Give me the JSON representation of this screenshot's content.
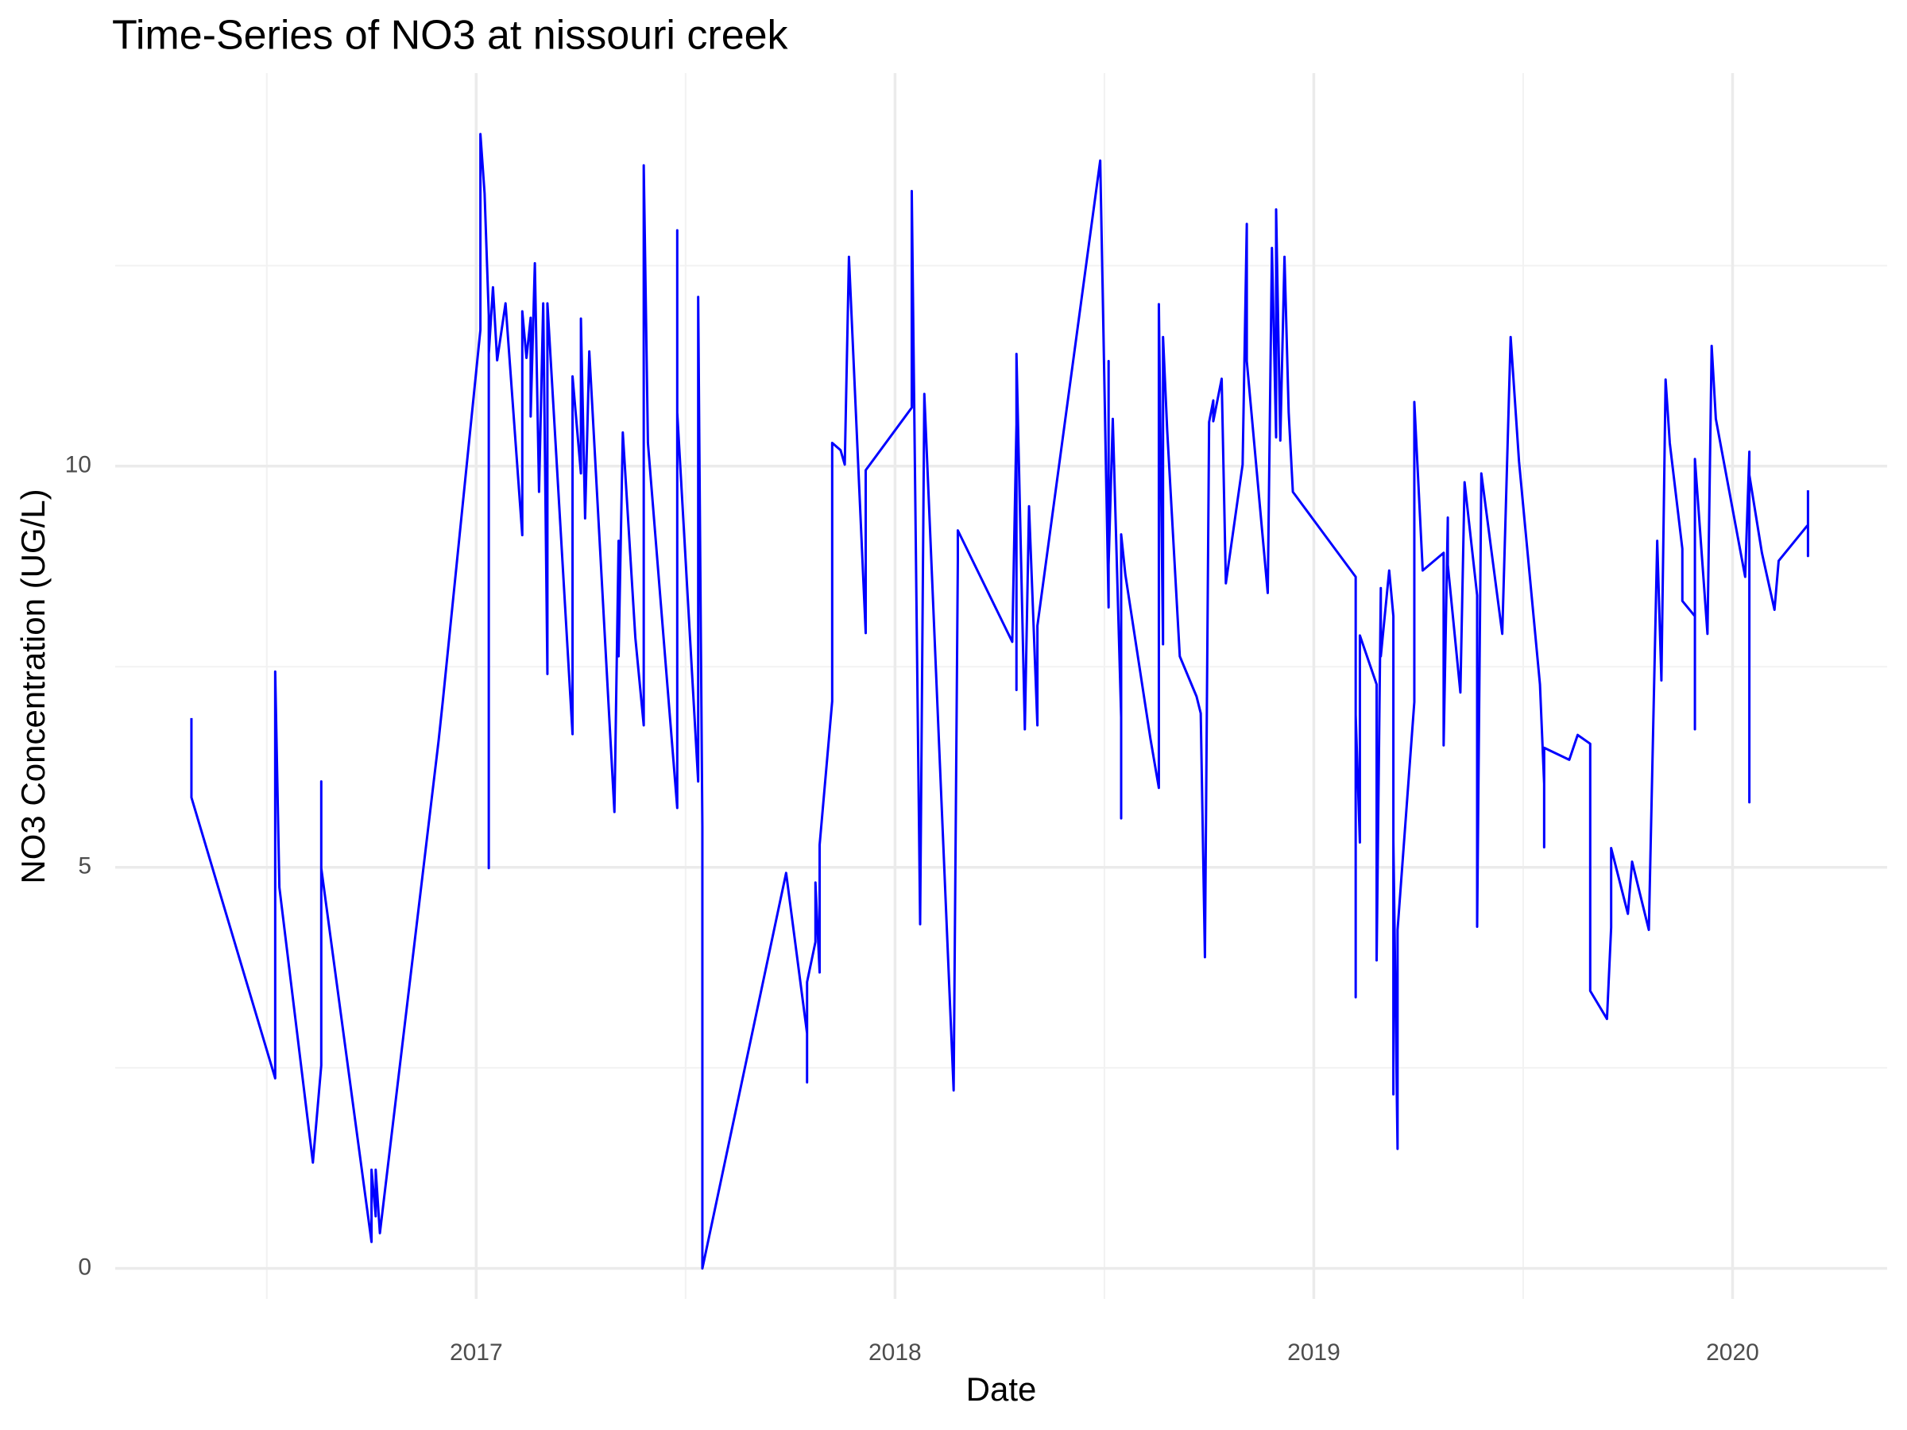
{
  "chart_data": {
    "type": "line",
    "title": "Time-Series of NO3 at nissouri creek",
    "x_label": "Date",
    "y_label": "NO3 Concentration (UG/L)",
    "color": "#0000ff",
    "grid": true,
    "xlim": [
      2016.138,
      2020.369
    ],
    "ylim": [
      -0.38,
      14.9
    ],
    "xticks": [
      2017,
      2018,
      2019,
      2020
    ],
    "x_minor_ticks": [
      2016.5,
      2017.5,
      2018.5,
      2019.5
    ],
    "yticks": [
      0,
      5,
      10
    ],
    "y_minor_ticks": [
      2.5,
      7.5,
      12.5
    ],
    "x": [
      2016.32,
      2016.32,
      2016.52,
      2016.52,
      2016.53,
      2016.61,
      2016.63,
      2016.63,
      2016.63,
      2016.75,
      2016.75,
      2016.76,
      2016.76,
      2016.77,
      2016.91,
      2016.92,
      2017.01,
      2017.01,
      2017.02,
      2017.03,
      2017.03,
      2017.03,
      2017.04,
      2017.05,
      2017.07,
      2017.11,
      2017.11,
      2017.12,
      2017.13,
      2017.13,
      2017.14,
      2017.15,
      2017.16,
      2017.17,
      2017.17,
      2017.23,
      2017.23,
      2017.25,
      2017.25,
      2017.26,
      2017.27,
      2017.33,
      2017.34,
      2017.34,
      2017.35,
      2017.38,
      2017.4,
      2017.4,
      2017.41,
      2017.48,
      2017.48,
      2017.48,
      2017.53,
      2017.53,
      2017.54,
      2017.54,
      2017.74,
      2017.79,
      2017.79,
      2017.79,
      2017.81,
      2017.81,
      2017.82,
      2017.82,
      2017.85,
      2017.85,
      2017.87,
      2017.88,
      2017.89,
      2017.93,
      2017.93,
      2018.04,
      2018.04,
      2018.06,
      2018.07,
      2018.14,
      2018.15,
      2018.15,
      2018.28,
      2018.29,
      2018.29,
      2018.29,
      2018.31,
      2018.32,
      2018.34,
      2018.34,
      2018.49,
      2018.51,
      2018.51,
      2018.51,
      2018.52,
      2018.54,
      2018.54,
      2018.54,
      2018.55,
      2018.61,
      2018.63,
      2018.63,
      2018.64,
      2018.64,
      2018.65,
      2018.68,
      2018.72,
      2018.73,
      2018.74,
      2018.75,
      2018.76,
      2018.76,
      2018.78,
      2018.79,
      2018.83,
      2018.84,
      2018.84,
      2018.89,
      2018.9,
      2018.91,
      2018.91,
      2018.92,
      2018.93,
      2018.94,
      2018.95,
      2019.1,
      2019.1,
      2019.1,
      2019.11,
      2019.11,
      2019.15,
      2019.15,
      2019.16,
      2019.16,
      2019.18,
      2019.19,
      2019.19,
      2019.19,
      2019.2,
      2019.2,
      2019.24,
      2019.24,
      2019.26,
      2019.31,
      2019.31,
      2019.32,
      2019.32,
      2019.35,
      2019.36,
      2019.39,
      2019.39,
      2019.4,
      2019.45,
      2019.47,
      2019.49,
      2019.54,
      2019.55,
      2019.55,
      2019.55,
      2019.61,
      2019.63,
      2019.66,
      2019.66,
      2019.7,
      2019.71,
      2019.71,
      2019.75,
      2019.76,
      2019.8,
      2019.82,
      2019.83,
      2019.84,
      2019.85,
      2019.88,
      2019.88,
      2019.91,
      2019.91,
      2019.91,
      2019.94,
      2019.95,
      2019.96,
      2020.03,
      2020.04,
      2020.04,
      2020.04,
      2020.07,
      2020.1,
      2020.11,
      2020.18,
      2020.18,
      2020.18
    ],
    "values": [
      6.86,
      5.87,
      2.37,
      7.44,
      4.75,
      1.32,
      2.53,
      6.07,
      4.99,
      0.33,
      1.23,
      0.65,
      1.23,
      0.44,
      6.57,
      7.06,
      11.7,
      14.14,
      13.4,
      11.88,
      4.99,
      11.4,
      12.23,
      11.32,
      12.03,
      9.14,
      11.93,
      11.35,
      11.85,
      10.62,
      12.53,
      9.68,
      12.03,
      7.41,
      12.03,
      6.66,
      11.12,
      9.91,
      11.84,
      9.35,
      11.43,
      5.69,
      9.07,
      7.63,
      10.42,
      7.86,
      6.77,
      13.75,
      10.29,
      5.74,
      12.94,
      10.67,
      6.07,
      12.11,
      5.51,
      0.0,
      4.93,
      2.93,
      2.32,
      3.57,
      4.07,
      4.81,
      3.69,
      5.28,
      7.07,
      10.29,
      10.2,
      10.02,
      12.61,
      7.92,
      9.95,
      10.73,
      13.43,
      4.29,
      10.9,
      2.22,
      8.82,
      9.2,
      7.81,
      10.52,
      7.21,
      11.4,
      6.72,
      9.5,
      6.77,
      8.01,
      13.81,
      8.24,
      11.31,
      8.77,
      10.59,
      6.87,
      5.61,
      9.15,
      8.65,
      6.6,
      5.99,
      12.02,
      7.78,
      11.61,
      10.44,
      7.63,
      7.13,
      6.92,
      3.88,
      10.55,
      10.82,
      10.56,
      11.09,
      8.54,
      10.02,
      13.02,
      11.31,
      8.42,
      12.72,
      10.36,
      13.2,
      10.32,
      12.61,
      10.67,
      9.68,
      8.62,
      3.38,
      6.9,
      5.31,
      7.89,
      7.28,
      3.84,
      8.48,
      7.63,
      8.7,
      8.13,
      2.17,
      5.33,
      1.49,
      4.22,
      7.06,
      10.8,
      8.7,
      8.92,
      6.52,
      9.36,
      8.77,
      7.18,
      9.8,
      8.39,
      4.26,
      9.91,
      7.91,
      11.61,
      10.06,
      7.28,
      6.04,
      5.25,
      6.49,
      6.34,
      6.65,
      6.54,
      3.46,
      3.11,
      4.25,
      5.24,
      4.42,
      5.07,
      4.22,
      9.07,
      7.33,
      11.08,
      10.29,
      8.97,
      8.32,
      8.13,
      6.72,
      10.09,
      7.91,
      11.5,
      10.59,
      8.62,
      10.18,
      5.81,
      9.89,
      8.92,
      8.21,
      8.82,
      9.27,
      8.88,
      9.7
    ]
  }
}
